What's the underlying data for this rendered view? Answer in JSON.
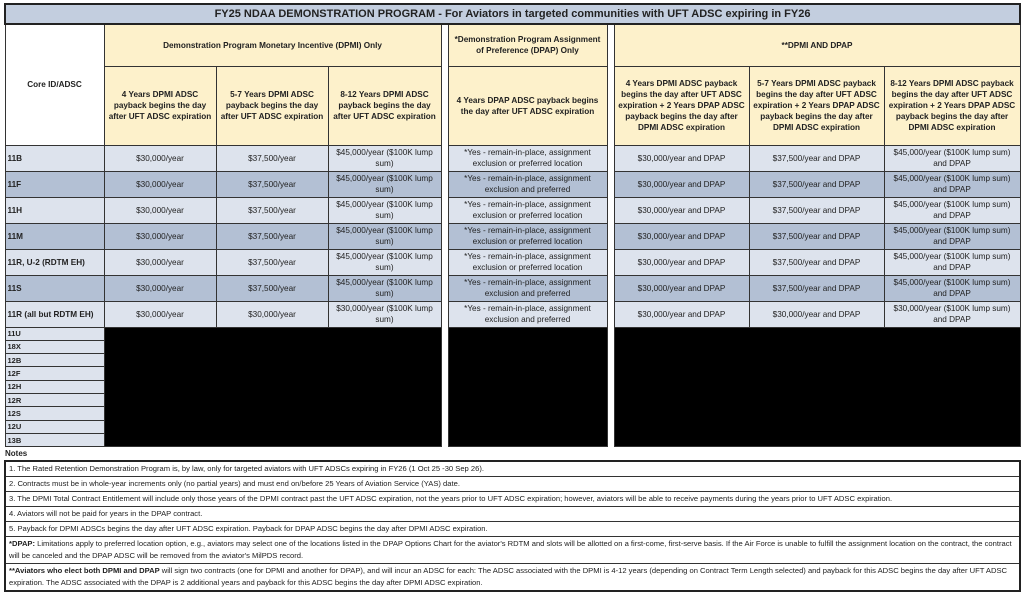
{
  "title": "FY25 NDAA DEMONSTRATION PROGRAM - For Aviators in targeted communities with UFT ADSC expiring in FY26",
  "headers": {
    "core": "Core ID/ADSC",
    "dpmi_group": "Demonstration Program Monetary Incentive (DPMI) Only",
    "dpap_group": "*Demonstration Program Assignment of Preference (DPAP) Only",
    "both_group": "**DPMI AND DPAP",
    "columns": [
      "4 Years DPMI ADSC payback begins the day after UFT ADSC expiration",
      "5-7 Years DPMI ADSC payback begins the day after UFT ADSC expiration",
      "8-12 Years DPMI ADSC payback begins the day after UFT ADSC expiration",
      "4 Years DPAP ADSC payback begins the day after UFT ADSC expiration",
      "4 Years DPMI ADSC payback begins the day after UFT ADSC expiration + 2 Years DPAP ADSC payback begins the day after DPMI ADSC expiration",
      "5-7 Years DPMI ADSC payback begins the day after UFT ADSC expiration + 2 Years DPAP ADSC payback begins the day after DPMI ADSC expiration",
      "8-12 Years DPMI ADSC payback begins the day after UFT ADSC expiration + 2 Years DPAP ADSC payback begins the day after DPMI ADSC expiration"
    ]
  },
  "rows": [
    {
      "id": "11B",
      "cells": [
        "$30,000/year",
        "$37,500/year",
        "$45,000/year ($100K lump sum)",
        "*Yes - remain-in-place, assignment exclusion or preferred location",
        "$30,000/year and DPAP",
        "$37,500/year and DPAP",
        "$45,000/year ($100K lump sum) and DPAP"
      ]
    },
    {
      "id": "11F",
      "cells": [
        "$30,000/year",
        "$37,500/year",
        "$45,000/year ($100K lump sum)",
        "*Yes - remain-in-place, assignment exclusion and preferred",
        "$30,000/year and DPAP",
        "$37,500/year  and DPAP",
        "$45,000/year ($100K lump sum) and DPAP"
      ]
    },
    {
      "id": "11H",
      "cells": [
        "$30,000/year",
        "$37,500/year",
        "$45,000/year ($100K lump sum)",
        "*Yes - remain-in-place, assignment exclusion or preferred location",
        "$30,000/year and DPAP",
        "$37,500/year and DPAP",
        "$45,000/year ($100K lump sum) and DPAP"
      ]
    },
    {
      "id": "11M",
      "cells": [
        "$30,000/year",
        "$37,500/year",
        "$45,000/year ($100K lump sum)",
        "*Yes - remain-in-place, assignment exclusion or preferred location",
        "$30,000/year and DPAP",
        "$37,500/year  and DPAP",
        "$45,000/year ($100K lump sum) and DPAP"
      ]
    },
    {
      "id": "11R, U-2 (RDTM EH)",
      "cells": [
        "$30,000/year",
        "$37,500/year",
        "$45,000/year ($100K lump sum)",
        "*Yes - remain-in-place, assignment exclusion or preferred location",
        "$30,000/year and DPAP",
        "$37,500/year and DPAP",
        "$45,000/year ($100K lump sum) and DPAP"
      ]
    },
    {
      "id": "11S",
      "cells": [
        "$30,000/year",
        "$37,500/year",
        "$45,000/year ($100K lump sum)",
        "*Yes - remain-in-place, assignment exclusion and preferred",
        "$30,000/year and DPAP",
        "$37,500/year  and DPAP",
        "$45,000/year ($100K lump sum) and DPAP"
      ]
    },
    {
      "id": "11R (all but RDTM EH)",
      "cells": [
        "$30,000/year",
        "$30,000/year",
        "$30,000/year ($100K lump sum)",
        "*Yes - remain-in-place, assignment exclusion and preferred",
        "$30,000/year and DPAP",
        "$30,000/year and DPAP",
        "$30,000/year ($100K lump sum) and DPAP"
      ]
    }
  ],
  "ineligible_rows": [
    "11U",
    "18X",
    "12B",
    "12F",
    "12H",
    "12R",
    "12S",
    "12U",
    "13B"
  ],
  "notes_label": "Notes",
  "notes": [
    {
      "bold": "",
      "text": "1. The Rated Retention Demonstration Program is, by law, only for targeted aviators with UFT ADSCs expiring in FY26 (1 Oct 25 -30 Sep 26)."
    },
    {
      "bold": "",
      "text": "2. Contracts must be in whole-year increments only (no partial years) and must end on/before 25 Years of Aviation Service (YAS) date."
    },
    {
      "bold": "",
      "text": "3. The DPMI Total Contract Entitlement will include only those years of the DPMI contract past the UFT ADSC expiration, not the years prior to UFT ADSC expiration; however, aviators will be able to receive payments during the years prior to UFT ADSC expiration."
    },
    {
      "bold": "",
      "text": "4. Aviators will not be paid for years in the DPAP contract."
    },
    {
      "bold": "",
      "text": "5. Payback for DPMI ADSCs begins the day after UFT ADSC expiration. Payback for DPAP ADSC begins the day after DPMI ADSC expiration."
    },
    {
      "bold": "*DPAP:",
      "text": "  Limitations apply to preferred location option, e.g., aviators may select one of the locations listed in the DPAP Options Chart for the aviator's RDTM and slots will be allotted on a first-come, first-serve basis. If the Air Force is unable to fulfill the assignment location on the contract, the contract will be canceled and the DPAP ADSC will be removed from the aviator's MilPDS record."
    },
    {
      "bold": "**Aviators who elect both DPMI and DPAP",
      "text": " will sign two contracts (one for DPMI and another for DPAP), and will incur an ADSC for each:  The ADSC associated with the DPMI is 4-12 years (depending on Contract Term Length selected) and payback for this ADSC begins the day after UFT ADSC expiration.  The ADSC associated with the DPAP is 2 additional years and payback for this ADSC begins the day after DPMI ADSC expiration."
    }
  ],
  "colors": {
    "title_bg": "#c3cedf",
    "header_bg": "#fdf1cb",
    "row_light": "#dde3ed",
    "row_dark": "#b3c0d4",
    "ineligible": "#000000"
  }
}
